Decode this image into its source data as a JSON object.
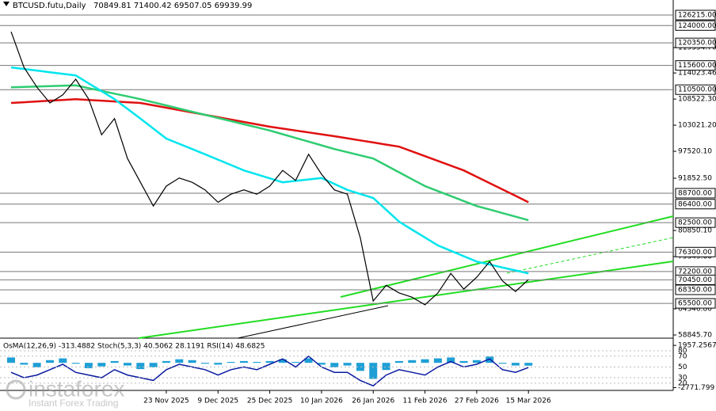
{
  "chart_data": {
    "type": "line",
    "title": "BTCUSD.futu,Daily",
    "quote": "70849.81 71400.42 69507.05 69939.99",
    "categories": [
      null,
      null,
      null,
      null,
      null,
      null,
      null,
      null,
      null,
      null,
      null,
      null,
      "23 Nov 2025",
      null,
      null,
      null,
      "9 Dec 2025",
      null,
      null,
      null,
      "25 Dec 2025",
      null,
      null,
      null,
      "10 Jan 2026",
      null,
      null,
      null,
      "26 Jan 2026",
      null,
      null,
      null,
      "11 Feb 2026",
      null,
      null,
      null,
      "27 Feb 2026",
      null,
      null,
      null,
      "15 Mar 2026"
    ],
    "series": [
      {
        "color": "#000000",
        "values": [
          122700,
          115200,
          111000,
          107700,
          109400,
          112700,
          108500,
          101000,
          104400,
          96000,
          91000,
          86000,
          90200,
          91900,
          91000,
          89400,
          86800,
          88500,
          89400,
          88500,
          90200,
          93500,
          91400,
          96900,
          92700,
          89400,
          88500,
          79300,
          66000,
          69300,
          67700,
          66800,
          65200,
          67700,
          71800,
          68500,
          71000,
          74300,
          70200,
          68000,
          70500
        ]
      },
      {
        "color": "#00e5ee",
        "values": [
          115200,
          114860,
          114520,
          114180,
          113840,
          113500,
          111830,
          110170,
          108500,
          106450,
          104400,
          102300,
          100200,
          99100,
          98000,
          96900,
          95770,
          94630,
          93500,
          92670,
          91830,
          91000,
          91300,
          91600,
          91900,
          90650,
          89400,
          88550,
          87700,
          85200,
          82700,
          81030,
          79370,
          77700,
          76570,
          75430,
          74300,
          73680,
          73050,
          72430,
          71800
        ]
      },
      {
        "color": "#2ecc71",
        "values": [
          111000,
          111080,
          111160,
          111240,
          111320,
          111400,
          110820,
          110240,
          109660,
          109080,
          108500,
          107840,
          107180,
          106520,
          105860,
          105200,
          104540,
          103880,
          103220,
          102560,
          101900,
          101120,
          100340,
          99560,
          98780,
          98000,
          97330,
          96670,
          96000,
          94550,
          93100,
          91650,
          90200,
          89150,
          88100,
          87050,
          86000,
          85250,
          84500,
          83750,
          83000
        ]
      },
      {
        "color": "#e01010",
        "values": [
          107700,
          107860,
          108020,
          108180,
          108340,
          108500,
          108340,
          108180,
          108020,
          107860,
          107700,
          107200,
          106700,
          106200,
          105700,
          105200,
          104700,
          104200,
          103700,
          103200,
          102700,
          102300,
          101900,
          101500,
          101100,
          100700,
          100260,
          99820,
          99380,
          98940,
          98500,
          97500,
          96500,
          95500,
          94500,
          93500,
          92160,
          90820,
          89480,
          88140,
          86800
        ]
      }
    ],
    "ylim": [
      58510,
      129383
    ],
    "yticks": [
      {
        "value": 119354.7,
        "label": "119354.70"
      },
      {
        "value": 114023.46,
        "label": "114023.46"
      },
      {
        "value": 108522.3,
        "label": "108522.30"
      },
      {
        "value": 103021.2,
        "label": "103021.20"
      },
      {
        "value": 97520.1,
        "label": "97520.10"
      },
      {
        "value": 91852.5,
        "label": "91852.50"
      },
      {
        "value": 80850.1,
        "label": "80850.10"
      },
      {
        "value": 75349,
        "label": "75349.00"
      },
      {
        "value": 64346.8,
        "label": "64346.80"
      },
      {
        "value": 58845.7,
        "label": "58845.70"
      }
    ],
    "levels": [
      {
        "value": 126215,
        "label": "126215.00"
      },
      {
        "value": 124000,
        "label": "124000.00"
      },
      {
        "value": 120350,
        "label": "120350.00"
      },
      {
        "value": 115600,
        "label": "115600.00"
      },
      {
        "value": 110500,
        "label": "110500.00"
      },
      {
        "value": 88700,
        "label": "88700.00"
      },
      {
        "value": 86400,
        "label": "86400.00"
      },
      {
        "value": 82500,
        "label": "82500.00"
      },
      {
        "value": 76300,
        "label": "76300.00"
      },
      {
        "value": 72200,
        "label": "72200.00"
      },
      {
        "value": 70450,
        "label": "70450.00"
      },
      {
        "value": 68350,
        "label": "68350.00"
      },
      {
        "value": 65500,
        "label": "65500.00"
      }
    ],
    "indicator_title": "OsMA(12,26,9) -313.4882  Stoch(5,3,3) 40.5062 28.1191  RSI(14) 48.6825",
    "osma": {
      "color": "#1e9fd6",
      "values": [
        600,
        -200,
        -500,
        300,
        500,
        -100,
        -600,
        -400,
        200,
        -300,
        -700,
        -500,
        200,
        400,
        300,
        -100,
        -200,
        100,
        200,
        100,
        200,
        400,
        100,
        500,
        -200,
        -500,
        -300,
        -900,
        -1800,
        -800,
        200,
        300,
        400,
        500,
        600,
        200,
        300,
        700,
        -100,
        -300,
        -313
      ]
    },
    "osma_lim": [
      -3000,
      2500
    ],
    "osma_ticks": [
      {
        "value": 1957.2567,
        "label": "1957.2567"
      },
      {
        "value": -2771.799,
        "label": "-2771.799"
      }
    ],
    "rsi": {
      "color": "#0a1aa0",
      "values": [
        40,
        30,
        35,
        45,
        55,
        40,
        35,
        30,
        45,
        35,
        30,
        25,
        45,
        55,
        50,
        45,
        35,
        45,
        50,
        45,
        55,
        65,
        50,
        70,
        50,
        40,
        40,
        25,
        15,
        35,
        45,
        40,
        35,
        50,
        60,
        50,
        55,
        65,
        45,
        40,
        49
      ]
    },
    "rsi_lim": [
      8,
      99
    ],
    "rsi_ticks": [
      80,
      70,
      50,
      30,
      20
    ]
  },
  "watermark": {
    "brand": "instaforex",
    "slogan": "Instant Forex Trading"
  }
}
